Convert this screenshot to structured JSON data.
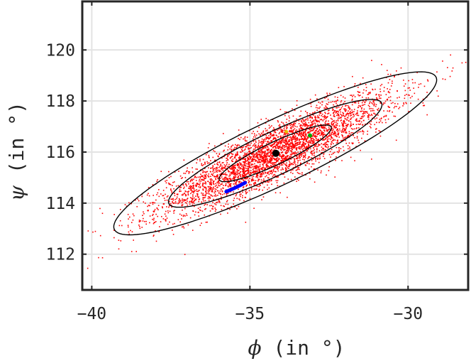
{
  "chart_data": {
    "type": "scatter",
    "title": "",
    "xlabel": {
      "symbol": "ϕ",
      "rest": " (in °)"
    },
    "ylabel": {
      "symbol": "ψ",
      "rest": " (in °)"
    },
    "xlim": [
      -40.3,
      -28.1
    ],
    "ylim": [
      110.6,
      121.9
    ],
    "xticks": [
      -40,
      -35,
      -30
    ],
    "xtick_labels": [
      "−40",
      "−35",
      "−30"
    ],
    "yticks": [
      112,
      114,
      116,
      118,
      120
    ],
    "ytick_labels": [
      "112",
      "114",
      "116",
      "118",
      "120"
    ],
    "grid": true,
    "legend": "none",
    "colors": {
      "samples": "#ff0000",
      "ellipse": "#000000",
      "center": "#000000",
      "blue_trace": "#0000ff",
      "green_marker": "#00aa00",
      "yellow_marker": "#e8c000",
      "grid": "#e3e3e3",
      "axes": "#262626"
    },
    "samples": {
      "count": 4000,
      "center": [
        -34.2,
        115.95
      ],
      "covariance": [
        [
          3.4,
          1.9
        ],
        [
          1.9,
          1.38
        ]
      ]
    },
    "center_point": [
      -34.18,
      115.95
    ],
    "ellipses": [
      {
        "center": [
          -34.2,
          115.95
        ],
        "semi_axes": [
          2.05,
          0.42
        ],
        "angle_deg": 30.8
      },
      {
        "center": [
          -34.2,
          115.95
        ],
        "semi_axes": [
          3.9,
          0.8
        ],
        "angle_deg": 30.8
      },
      {
        "center": [
          -34.2,
          115.95
        ],
        "semi_axes": [
          5.9,
          1.2
        ],
        "angle_deg": 30.8
      }
    ],
    "blue_trace": [
      [
        -35.75,
        114.45
      ],
      [
        -35.5,
        114.58
      ],
      [
        -35.3,
        114.7
      ],
      [
        -35.15,
        114.8
      ]
    ],
    "green_marker": [
      -33.1,
      116.65
    ],
    "yellow_marker": [
      -33.85,
      116.8
    ]
  }
}
